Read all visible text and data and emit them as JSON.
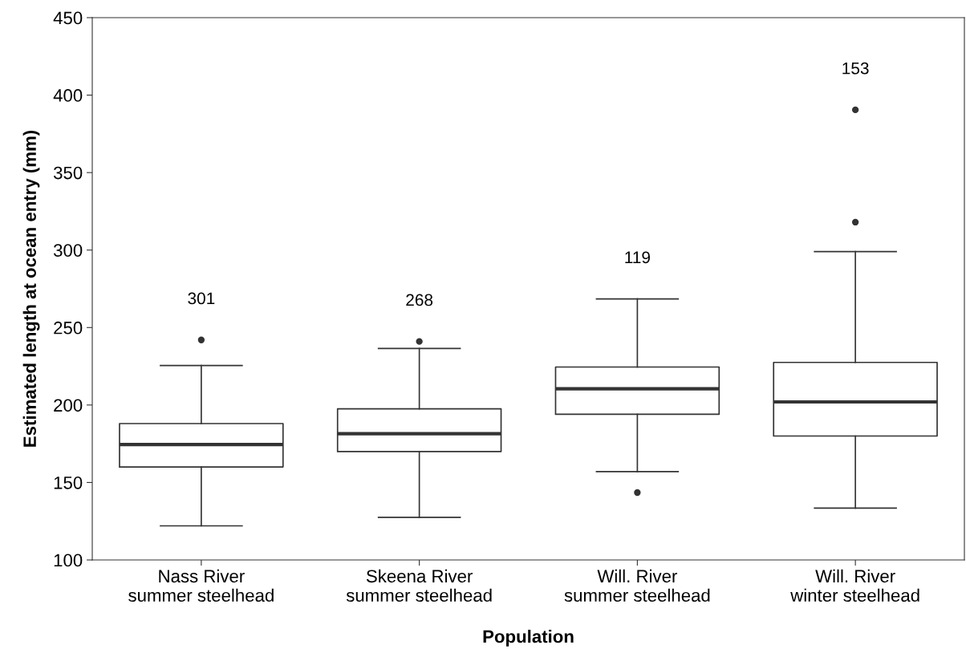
{
  "chart_data": {
    "type": "box",
    "xlabel": "Population",
    "ylabel": "Estimated length at ocean entry (mm)",
    "categories": [
      "Nass River\nsummer steelhead",
      "Skeena River\nsummer steelhead",
      "Will. River\nsummer steelhead",
      "Will. River\nwinter steelhead"
    ],
    "boxes": [
      {
        "low": 122,
        "q1": 160,
        "median": 174.5,
        "q3": 188,
        "high": 225.5,
        "outliers": [
          242
        ]
      },
      {
        "low": 127.5,
        "q1": 170,
        "median": 181.5,
        "q3": 197.5,
        "high": 236.5,
        "outliers": [
          241
        ]
      },
      {
        "low": 157,
        "q1": 194,
        "median": 210.5,
        "q3": 224.5,
        "high": 268.5,
        "outliers": [
          143.5
        ]
      },
      {
        "low": 133.5,
        "q1": 180,
        "median": 202,
        "q3": 227.5,
        "high": 299,
        "outliers": [
          318,
          390.5
        ]
      }
    ],
    "annotations": [
      "301",
      "268",
      "119",
      "153"
    ],
    "ylim": [
      100,
      450
    ],
    "yticks": [
      100,
      150,
      200,
      250,
      300,
      350,
      400,
      450
    ],
    "grid": false
  }
}
